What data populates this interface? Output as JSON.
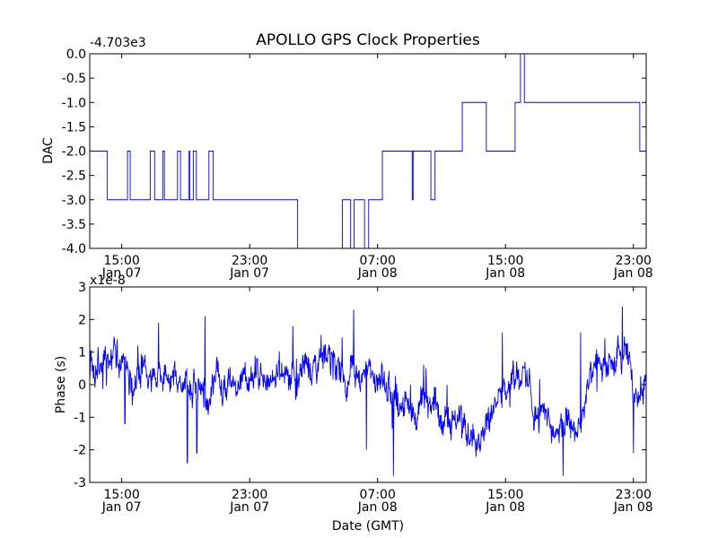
{
  "title": "APOLLO GPS Clock Properties",
  "xlabel": "Date (GMT)",
  "line_color": "#0000ff",
  "x_tick_labels": [
    {
      "time": "15:00",
      "date": "Jan 07",
      "t": 2
    },
    {
      "time": "23:00",
      "date": "Jan 07",
      "t": 10
    },
    {
      "time": "07:00",
      "date": "Jan 08",
      "t": 18
    },
    {
      "time": "15:00",
      "date": "Jan 08",
      "t": 26
    },
    {
      "time": "23:00",
      "date": "Jan 08",
      "t": 34
    }
  ],
  "chart_data": [
    {
      "type": "line",
      "name": "dac",
      "title": "APOLLO GPS Clock Properties",
      "ylabel": "DAC",
      "offset_label": "-4.703e3",
      "xlim": [
        0,
        34.8
      ],
      "ylim": [
        -4.0,
        0.0
      ],
      "y_ticks": [
        "0.0",
        "-0.5",
        "-1.0",
        "-1.5",
        "-2.0",
        "-2.5",
        "-3.0",
        "-3.5",
        "-4.0"
      ],
      "y_tick_values": [
        0.0,
        -0.5,
        -1.0,
        -1.5,
        -2.0,
        -2.5,
        -3.0,
        -3.5,
        -4.0
      ],
      "levels": [
        {
          "t0": 0.0,
          "t1": 1.1,
          "level": -2.0
        },
        {
          "t0": 1.1,
          "t1": 8.8,
          "level": -3.0,
          "flicker": -2.0,
          "rate": 0.55
        },
        {
          "t0": 8.8,
          "t1": 13.0,
          "level": -3.0
        },
        {
          "t0": 13.0,
          "t1": 15.8,
          "level": -4.0,
          "flicker": -3.0,
          "rate": 0.35
        },
        {
          "t0": 15.8,
          "t1": 18.3,
          "level": -3.0,
          "flicker": -4.0,
          "rate": 0.45
        },
        {
          "t0": 18.3,
          "t1": 22.6,
          "level": -2.0,
          "flicker": -3.0,
          "rate": 0.45
        },
        {
          "t0": 22.6,
          "t1": 23.3,
          "level": -2.0
        },
        {
          "t0": 23.3,
          "t1": 24.8,
          "level": -1.0,
          "flicker": -2.0,
          "rate": 0.55
        },
        {
          "t0": 24.8,
          "t1": 26.6,
          "level": -2.0
        },
        {
          "t0": 26.6,
          "t1": 28.9,
          "level": -1.0,
          "flicker": 0.0,
          "rate": 0.45
        },
        {
          "t0": 28.9,
          "t1": 30.4,
          "level": -1.0
        },
        {
          "t0": 30.4,
          "t1": 32.2,
          "level": -1.0,
          "flicker": -2.0,
          "rate": 0.5
        },
        {
          "t0": 32.2,
          "t1": 33.5,
          "level": -1.0,
          "flicker": 0.0,
          "rate": 0.25
        },
        {
          "t0": 33.5,
          "t1": 34.4,
          "level": -1.0
        },
        {
          "t0": 34.4,
          "t1": 34.8,
          "level": -2.0
        }
      ]
    },
    {
      "type": "line",
      "name": "phase",
      "ylabel": "Phase (s)",
      "offset_label": "x1e-8",
      "xlim": [
        0,
        34.8
      ],
      "ylim": [
        -3,
        3
      ],
      "y_ticks": [
        "3",
        "2",
        "1",
        "0",
        "-1",
        "-2",
        "-3"
      ],
      "y_tick_values": [
        3,
        2,
        1,
        0,
        -1,
        -2,
        -3
      ],
      "approx_trend": {
        "t": [
          0,
          0.8,
          1.5,
          2.3,
          3.5,
          5.5,
          7.5,
          9.5,
          11.5,
          13.5,
          15.3,
          16.5,
          18.0,
          19.5,
          21.0,
          22.2,
          23.5,
          25.0,
          26.0,
          27.0,
          28.0,
          29.3,
          30.5,
          31.5,
          32.5,
          33.5,
          34.2,
          34.8
        ],
        "y": [
          0.4,
          0.3,
          1.4,
          0.5,
          0.2,
          0.0,
          0.0,
          0.1,
          0.3,
          0.4,
          0.8,
          0.4,
          0.0,
          -0.6,
          -0.6,
          -0.8,
          -1.3,
          -1.1,
          0.0,
          0.4,
          -0.8,
          -1.5,
          -1.3,
          0.3,
          0.7,
          0.6,
          -0.5,
          0.5
        ]
      },
      "spikes": [
        {
          "t": 4.3,
          "y": 1.9
        },
        {
          "t": 6.1,
          "y": -2.4
        },
        {
          "t": 7.2,
          "y": 2.1
        },
        {
          "t": 6.7,
          "y": -2.1
        },
        {
          "t": 12.7,
          "y": 1.8
        },
        {
          "t": 16.5,
          "y": 2.3
        },
        {
          "t": 17.3,
          "y": -2.0
        },
        {
          "t": 19.0,
          "y": -2.8
        },
        {
          "t": 25.8,
          "y": 1.6
        },
        {
          "t": 29.6,
          "y": -2.8
        },
        {
          "t": 30.7,
          "y": 1.6
        },
        {
          "t": 33.3,
          "y": 2.4
        },
        {
          "t": 34.0,
          "y": -2.1
        },
        {
          "t": 2.2,
          "y": -1.2
        }
      ]
    }
  ]
}
